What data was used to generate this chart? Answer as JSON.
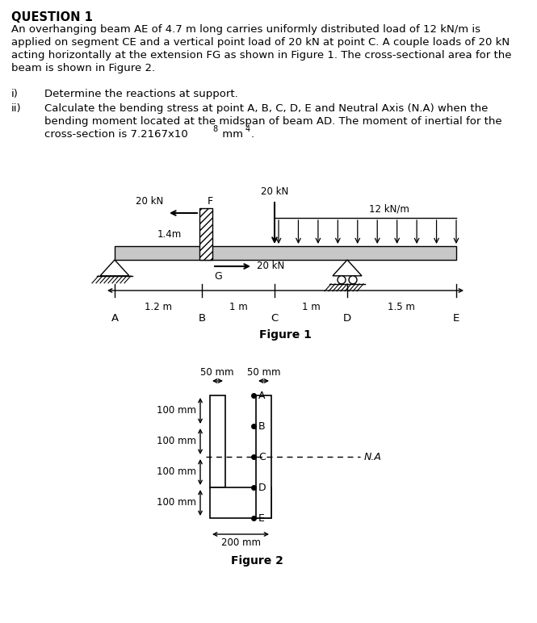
{
  "title": "QUESTION 1",
  "q_lines": [
    "An overhanging beam AE of 4.7 m long carries uniformly distributed load of 12 kN/m is",
    "applied on segment CE and a vertical point load of 20 kN at point C. A couple loads of 20 kN",
    "acting horizontally at the extension FG as shown in Figure 1. The cross-sectional area for the",
    "beam is shown in Figure 2."
  ],
  "fig1_label": "Figure 1",
  "fig2_label": "Figure 2",
  "bg_color": "#ffffff",
  "text_color": "#000000",
  "beam_color": "#c8c8c8"
}
